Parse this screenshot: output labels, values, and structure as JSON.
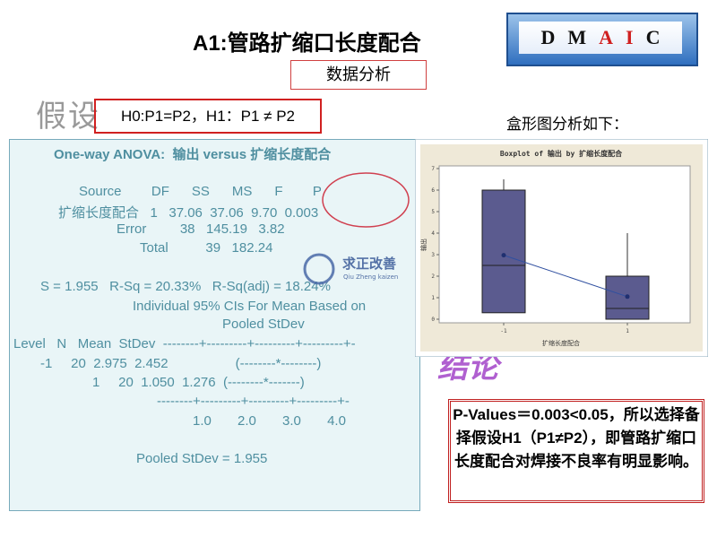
{
  "header": {
    "title": "A1:管路扩缩口长度配合",
    "dmaic": [
      "D",
      "M",
      "A",
      "I",
      "C"
    ],
    "section": "数据分析"
  },
  "hypothesis": {
    "label": "假设",
    "text": "H0:P1=P2，H1：P1 ≠ P2"
  },
  "boxplot_note": "盒形图分析如下：",
  "anova": {
    "title": "One-way ANOVA:  输出 versus 扩缩长度配合",
    "lines": [
      "Source        DF      SS      MS      F        P",
      "扩缩长度配合   1   37.06  37.06  9.70  0.003",
      "Error         38   145.19   3.82",
      "Total          39   182.24",
      "S = 1.955   R-Sq = 20.33%   R-Sq(adj) = 18.24%",
      "Individual 95% CIs For Mean Based on",
      "Pooled StDev",
      "Level   N   Mean  StDev  --------+---------+---------+---------+-",
      "-1     20  2.975  2.452                  (--------*--------)",
      "1     20  1.050  1.276  (--------*-------)",
      "--------+---------+---------+---------+-",
      "1.0       2.0       3.0       4.0",
      "Pooled StDev = 1.955"
    ]
  },
  "watermark": {
    "name": "求正改善",
    "pinyin": "Qiu Zheng kaizen"
  },
  "conclusion": {
    "label": "结论",
    "text": "P-Values＝0.003<0.05，所以选择备择假设H1（P1≠P2），即管路扩缩口长度配合对焊接不良率有明显影响。"
  },
  "chart_data": {
    "type": "boxplot",
    "title": "Boxplot of 输出 by 扩缩长度配合",
    "x_label": "扩缩长度配合",
    "y_label": "输出",
    "categories": [
      "-1",
      "1"
    ],
    "min": [
      0.3,
      0
    ],
    "q1": [
      0.3,
      0
    ],
    "median": [
      2.5,
      0.5
    ],
    "q3": [
      6,
      2
    ],
    "max": [
      6.5,
      4
    ],
    "means": [
      2.975,
      1.05
    ],
    "color": "#5b5b8f",
    "ylim": [
      0,
      7
    ],
    "yticks": [
      0,
      1,
      2,
      3,
      4,
      5,
      6,
      7
    ]
  }
}
